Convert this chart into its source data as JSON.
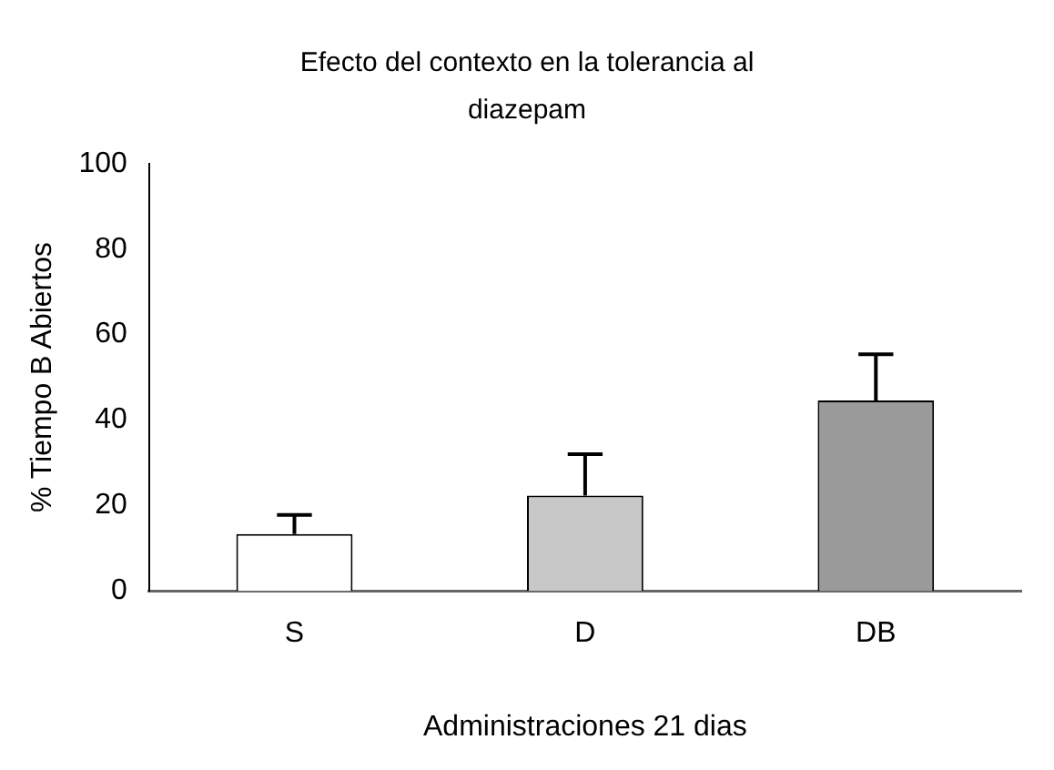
{
  "chart_data": {
    "type": "bar",
    "title": "Efecto del contexto en la tolerancia al diazepam",
    "xlabel": "Administraciones 21 dias",
    "ylabel": "% Tiempo B Abiertos",
    "categories": [
      "S",
      "D",
      "DB"
    ],
    "values": [
      13.3,
      22.3,
      44.6
    ],
    "colors": [
      "#ffffff",
      "#c8c8c8",
      "#9a9a9a"
    ],
    "errors": [
      [
        13.3,
        17.8
      ],
      [
        22.3,
        32.0
      ],
      [
        44.6,
        55.4
      ]
    ],
    "ylim": [
      0,
      100
    ],
    "yticks": [
      0,
      20,
      40,
      60,
      80,
      100
    ],
    "grid": false,
    "legend": false
  }
}
